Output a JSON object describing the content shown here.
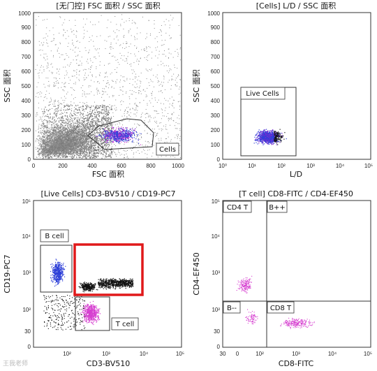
{
  "panels": [
    {
      "id": "p1",
      "title": "[无门控] FSC 面积 / SSC 面积",
      "xlabel": "FSC 面积",
      "ylabel": "SSC 面积",
      "xscale": "linear",
      "yscale": "linear",
      "xticks": [
        "0",
        "200",
        "400",
        "600",
        "800",
        "1000"
      ],
      "yticks": [
        "0",
        "100",
        "200",
        "300",
        "400",
        "500",
        "600",
        "700",
        "800",
        "900",
        "1000"
      ],
      "gates": [
        {
          "name": "Cells",
          "label": "Cells"
        }
      ]
    },
    {
      "id": "p2",
      "title": "[Cells] L/D / SSC 面积",
      "xlabel": "L/D",
      "ylabel": "SSC 面积",
      "xscale": "log",
      "yscale": "linear",
      "xticks": [
        "10⁰",
        "10¹",
        "10²",
        "10³",
        "10⁴",
        "10⁵"
      ],
      "yticks": [
        "0",
        "100",
        "200",
        "300",
        "400",
        "500",
        "600",
        "700",
        "800",
        "900",
        "1000"
      ],
      "gates": [
        {
          "name": "Live Cells",
          "label": "Live Cells"
        }
      ]
    },
    {
      "id": "p3",
      "title": "[Live Cells] CD3-BV510 / CD19-PC7",
      "xlabel": "CD3-BV510",
      "ylabel": "CD19-PC7",
      "xscale": "log",
      "yscale": "log",
      "xticks": [
        "10²",
        "10³",
        "10⁴",
        "10⁵"
      ],
      "yticks": [
        "30",
        "0",
        "10²",
        "10³",
        "10⁴",
        "10⁵"
      ],
      "gates": [
        {
          "name": "B cell",
          "label": "B cell"
        },
        {
          "name": "T cell",
          "label": "T cell"
        }
      ]
    },
    {
      "id": "p4",
      "title": "[T cell] CD8-FITC / CD4-EF450",
      "xlabel": "CD8-FITC",
      "ylabel": "CD4-EF450",
      "xscale": "log",
      "yscale": "log",
      "xticks": [
        "30",
        "0",
        "10²",
        "10³",
        "10⁴",
        "10⁵"
      ],
      "yticks": [
        "30",
        "0",
        "10²",
        "10³",
        "10⁴",
        "10⁵"
      ],
      "quadrants": [
        "CD4 T",
        "B++",
        "B--",
        "CD8 T"
      ]
    }
  ],
  "watermark": "王我老师",
  "colors": {
    "ungated": "#8a8a8a",
    "gated": "#111111",
    "b_cell": "#2e40d8",
    "t_cell": "#d63fd0",
    "highlight_box": "#e0191a"
  }
}
